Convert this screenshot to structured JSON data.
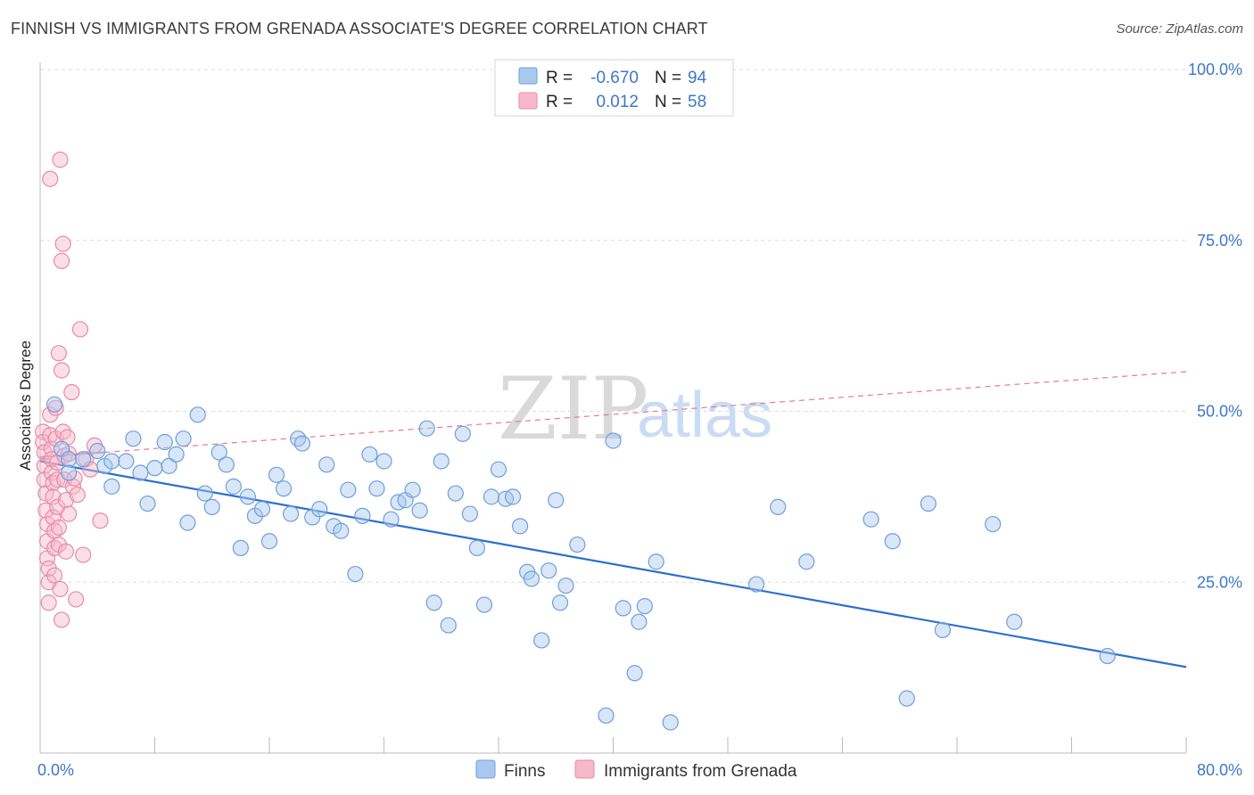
{
  "title": "FINNISH VS IMMIGRANTS FROM GRENADA ASSOCIATE'S DEGREE CORRELATION CHART",
  "source": "Source: ZipAtlas.com",
  "watermark": {
    "zip": "ZIP",
    "atlas": "atlas"
  },
  "legend_top": {
    "rows": [
      {
        "r_label": "R =",
        "r_value": "-0.670",
        "n_label": "N =",
        "n_value": "94",
        "color": "#a9c8f0"
      },
      {
        "r_label": "R =",
        "r_value": "0.012",
        "n_label": "N =",
        "n_value": "58",
        "color": "#f6b8ca"
      }
    ]
  },
  "legend_bottom": [
    {
      "label": "Finns",
      "color": "#a9c8f0"
    },
    {
      "label": "Immigrants from Grenada",
      "color": "#f6b8ca"
    }
  ],
  "colors": {
    "finns_fill": "#a9c8f0",
    "finns_stroke": "#6f9fd8",
    "finns_line": "#2a6fd1",
    "grenada_fill": "#f6b8ca",
    "grenada_stroke": "#e88aa8",
    "grenada_line": "#e07a9a",
    "tick_text": "#3d77c9",
    "grid": "#dddddd"
  },
  "chart_data": {
    "type": "scatter",
    "title": "FINNISH VS IMMIGRANTS FROM GRENADA ASSOCIATE'S DEGREE CORRELATION CHART",
    "xlabel": "",
    "ylabel": "Associate's Degree",
    "xlim": [
      0,
      80
    ],
    "ylim": [
      0,
      100
    ],
    "x_tick_labels": [
      "0.0%",
      "80.0%"
    ],
    "y_tick_labels": [
      "25.0%",
      "50.0%",
      "75.0%",
      "100.0%"
    ],
    "y_ticks": [
      25,
      50,
      75,
      100
    ],
    "grid": true,
    "legend_position": "top-center",
    "series": [
      {
        "name": "Finns",
        "r": -0.67,
        "n": 94,
        "trend": {
          "x": [
            0,
            80
          ],
          "y": [
            42.7,
            12.6
          ]
        },
        "points": [
          [
            1.0,
            51.0
          ],
          [
            1.5,
            44.5
          ],
          [
            2.0,
            43.0
          ],
          [
            2.0,
            41.0
          ],
          [
            3.0,
            43.0
          ],
          [
            4.0,
            44.2
          ],
          [
            4.5,
            42.0
          ],
          [
            5.0,
            42.7
          ],
          [
            5.0,
            39.0
          ],
          [
            6.0,
            42.7
          ],
          [
            6.5,
            46.0
          ],
          [
            7.0,
            41.0
          ],
          [
            7.5,
            36.5
          ],
          [
            8.0,
            41.7
          ],
          [
            8.7,
            45.5
          ],
          [
            9.0,
            42.0
          ],
          [
            9.5,
            43.7
          ],
          [
            10.0,
            46.0
          ],
          [
            10.3,
            33.7
          ],
          [
            11.0,
            49.5
          ],
          [
            11.5,
            38.0
          ],
          [
            12.0,
            36.0
          ],
          [
            12.5,
            44.0
          ],
          [
            13.0,
            42.2
          ],
          [
            13.5,
            39.0
          ],
          [
            14.0,
            30.0
          ],
          [
            14.5,
            37.5
          ],
          [
            15.0,
            34.7
          ],
          [
            15.5,
            35.7
          ],
          [
            16.0,
            31.0
          ],
          [
            16.5,
            40.7
          ],
          [
            17.0,
            38.7
          ],
          [
            17.5,
            35.0
          ],
          [
            18.0,
            46.0
          ],
          [
            18.3,
            45.3
          ],
          [
            19.0,
            34.5
          ],
          [
            19.5,
            35.7
          ],
          [
            20.0,
            42.2
          ],
          [
            20.5,
            33.2
          ],
          [
            21.0,
            32.5
          ],
          [
            21.5,
            38.5
          ],
          [
            22.0,
            26.2
          ],
          [
            22.5,
            34.7
          ],
          [
            23.0,
            43.7
          ],
          [
            23.5,
            38.7
          ],
          [
            24.0,
            42.7
          ],
          [
            24.5,
            34.2
          ],
          [
            25.0,
            36.7
          ],
          [
            25.5,
            37.0
          ],
          [
            26.0,
            38.5
          ],
          [
            26.5,
            35.5
          ],
          [
            27.0,
            47.5
          ],
          [
            27.5,
            22.0
          ],
          [
            28.0,
            42.7
          ],
          [
            28.5,
            18.7
          ],
          [
            29.0,
            38.0
          ],
          [
            29.5,
            46.7
          ],
          [
            30.0,
            35.0
          ],
          [
            30.5,
            30.0
          ],
          [
            31.0,
            21.7
          ],
          [
            31.5,
            37.5
          ],
          [
            32.0,
            41.5
          ],
          [
            32.5,
            37.2
          ],
          [
            33.0,
            37.5
          ],
          [
            33.5,
            33.2
          ],
          [
            34.0,
            26.5
          ],
          [
            34.3,
            25.5
          ],
          [
            35.0,
            16.5
          ],
          [
            35.5,
            26.7
          ],
          [
            36.0,
            37.0
          ],
          [
            36.3,
            22.0
          ],
          [
            36.7,
            24.5
          ],
          [
            37.5,
            30.5
          ],
          [
            39.5,
            5.5
          ],
          [
            40.0,
            45.7
          ],
          [
            40.7,
            21.2
          ],
          [
            41.5,
            11.7
          ],
          [
            41.8,
            19.2
          ],
          [
            42.2,
            21.5
          ],
          [
            43.0,
            28.0
          ],
          [
            44.0,
            4.5
          ],
          [
            50.0,
            24.7
          ],
          [
            51.5,
            36.0
          ],
          [
            53.5,
            28.0
          ],
          [
            58.0,
            34.2
          ],
          [
            59.5,
            31.0
          ],
          [
            60.5,
            8.0
          ],
          [
            62.0,
            36.5
          ],
          [
            63.0,
            18.0
          ],
          [
            66.5,
            33.5
          ],
          [
            68.0,
            19.2
          ],
          [
            74.5,
            14.2
          ]
        ]
      },
      {
        "name": "Immigrants from Grenada",
        "r": 0.012,
        "n": 58,
        "trend": {
          "x": [
            0,
            80
          ],
          "y": [
            43.3,
            55.8
          ]
        },
        "points": [
          [
            0.2,
            47.0
          ],
          [
            0.2,
            45.5
          ],
          [
            0.3,
            44.0
          ],
          [
            0.3,
            42.0
          ],
          [
            0.3,
            40.0
          ],
          [
            0.4,
            38.0
          ],
          [
            0.4,
            35.5
          ],
          [
            0.5,
            33.5
          ],
          [
            0.5,
            31.0
          ],
          [
            0.5,
            28.5
          ],
          [
            0.6,
            27.0
          ],
          [
            0.6,
            25.0
          ],
          [
            0.6,
            22.0
          ],
          [
            0.7,
            84.0
          ],
          [
            0.7,
            49.5
          ],
          [
            0.7,
            46.5
          ],
          [
            0.8,
            44.5
          ],
          [
            0.8,
            43.0
          ],
          [
            0.8,
            41.0
          ],
          [
            0.9,
            39.5
          ],
          [
            0.9,
            37.5
          ],
          [
            0.9,
            34.5
          ],
          [
            1.0,
            32.5
          ],
          [
            1.0,
            30.0
          ],
          [
            1.0,
            26.0
          ],
          [
            1.1,
            50.5
          ],
          [
            1.1,
            46.0
          ],
          [
            1.2,
            42.5
          ],
          [
            1.2,
            40.0
          ],
          [
            1.2,
            36.0
          ],
          [
            1.3,
            58.5
          ],
          [
            1.3,
            33.0
          ],
          [
            1.3,
            30.5
          ],
          [
            1.4,
            86.8
          ],
          [
            1.4,
            24.0
          ],
          [
            1.5,
            72.0
          ],
          [
            1.5,
            56.0
          ],
          [
            1.5,
            19.5
          ],
          [
            1.6,
            74.5
          ],
          [
            1.6,
            47.0
          ],
          [
            1.7,
            43.5
          ],
          [
            1.7,
            40.0
          ],
          [
            1.8,
            37.0
          ],
          [
            1.8,
            29.5
          ],
          [
            1.9,
            46.2
          ],
          [
            2.0,
            43.8
          ],
          [
            2.0,
            35.0
          ],
          [
            2.2,
            52.8
          ],
          [
            2.3,
            39.0
          ],
          [
            2.4,
            40.2
          ],
          [
            2.5,
            22.5
          ],
          [
            2.6,
            37.8
          ],
          [
            2.8,
            62.0
          ],
          [
            3.0,
            29.0
          ],
          [
            3.2,
            43.0
          ],
          [
            3.5,
            41.5
          ],
          [
            3.8,
            45.0
          ],
          [
            4.2,
            34.0
          ]
        ]
      }
    ]
  }
}
